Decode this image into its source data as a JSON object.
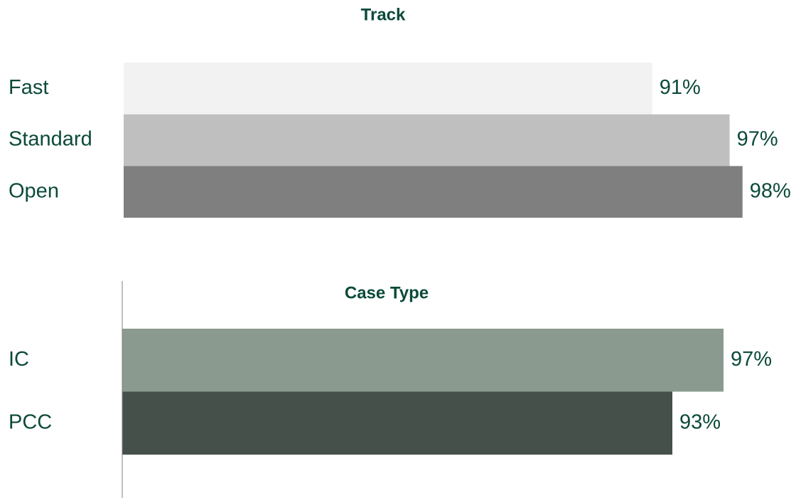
{
  "chart_data": [
    {
      "type": "bar",
      "orientation": "horizontal",
      "title": "Track",
      "categories": [
        "Fast",
        "Standard",
        "Open"
      ],
      "values": [
        91,
        97,
        98
      ],
      "value_labels": [
        "91%",
        "97%",
        "98%"
      ],
      "colors": [
        "#f2f2f2",
        "#bfbfbf",
        "#7f7f7f"
      ],
      "xlim": [
        50,
        100
      ],
      "axis_line": false
    },
    {
      "type": "bar",
      "orientation": "horizontal",
      "title": "Case Type",
      "categories": [
        "IC",
        "PCC"
      ],
      "values": [
        97,
        93
      ],
      "value_labels": [
        "97%",
        "93%"
      ],
      "colors": [
        "#8a9a8f",
        "#45504a"
      ],
      "xlim": [
        50,
        100
      ],
      "axis_line": true
    }
  ]
}
